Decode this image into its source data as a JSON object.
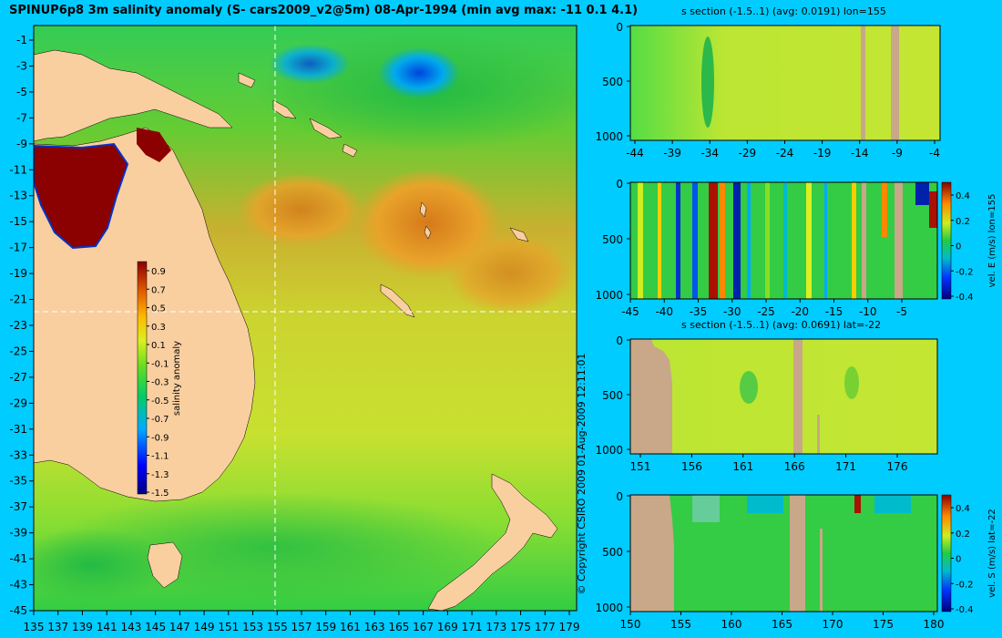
{
  "title": "SPINUP6p8 3m salinity anomaly (S- cars2009_v2@5m) 08-Apr-1994 (min avg max: -11 0.1 4.1)",
  "copyright": "© Copyright CSIRO 2009   01-Aug-2009 12:11:01",
  "colors": {
    "background": "#00ccff",
    "land": "#f9cfa0",
    "section_land": "#c8a888",
    "section_line": "#ffffff"
  },
  "map": {
    "x_ticks": [
      "135",
      "137",
      "139",
      "141",
      "143",
      "145",
      "147",
      "149",
      "151",
      "153",
      "155",
      "157",
      "159",
      "161",
      "163",
      "165",
      "167",
      "169",
      "171",
      "173",
      "175",
      "177",
      "179"
    ],
    "y_ticks": [
      "-1",
      "-3",
      "-5",
      "-7",
      "-9",
      "-11",
      "-13",
      "-15",
      "-17",
      "-19",
      "-21",
      "-23",
      "-25",
      "-27",
      "-29",
      "-31",
      "-33",
      "-35",
      "-37",
      "-39",
      "-41",
      "-43",
      "-45"
    ],
    "section_lon": 155,
    "section_lat": -22,
    "colorbar": {
      "label": "salinity anomaly",
      "ticks": [
        "0.9",
        "0.7",
        "0.5",
        "0.3",
        "0.1",
        "-0.1",
        "-0.3",
        "-0.5",
        "-0.7",
        "-0.9",
        "-1.1",
        "-1.3",
        "-1.5"
      ]
    }
  },
  "panels": [
    {
      "title": "s section (-1.5..1) (avg: 0.0191) lon=155",
      "x_ticks": [
        "-44",
        "-39",
        "-34",
        "-29",
        "-24",
        "-19",
        "-14",
        "-9",
        "-4"
      ],
      "y_ticks": [
        "0",
        "500",
        "1000"
      ],
      "colorbar": null
    },
    {
      "title": "",
      "x_ticks": [
        "-45",
        "-40",
        "-35",
        "-30",
        "-25",
        "-20",
        "-15",
        "-10",
        "-5"
      ],
      "y_ticks": [
        "0",
        "500",
        "1000"
      ],
      "colorbar": {
        "label": "vel. E (m/s) lon=155",
        "ticks": [
          "0.4",
          "0.2",
          "0",
          "-0.2",
          "-0.4"
        ]
      }
    },
    {
      "title": "s section (-1.5..1) (avg: 0.0691) lat=-22",
      "x_ticks": [
        "151",
        "156",
        "161",
        "166",
        "171",
        "176"
      ],
      "y_ticks": [
        "0",
        "500",
        "1000"
      ],
      "colorbar": null
    },
    {
      "title": "",
      "x_ticks": [
        "150",
        "155",
        "160",
        "165",
        "170",
        "175",
        "180"
      ],
      "y_ticks": [
        "0",
        "500",
        "1000"
      ],
      "colorbar": {
        "label": "vel. S (m/s) lat=-22",
        "ticks": [
          "0.4",
          "0.2",
          "0",
          "-0.2",
          "-0.4"
        ]
      }
    }
  ]
}
